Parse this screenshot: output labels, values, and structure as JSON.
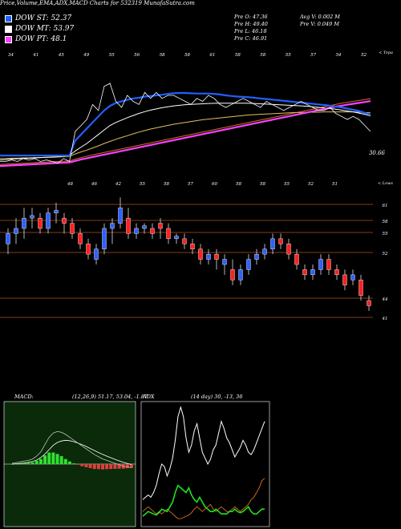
{
  "header": {
    "title": "Price,Volume,EMA,ADX,MACD Charts for 532319  MunafaSutra.com"
  },
  "legend": [
    {
      "label": "DOW ST: 52.37",
      "color": "#2060ff"
    },
    {
      "label": "DOW MT: 53.97",
      "color": "#ffffff"
    },
    {
      "label": "DOW PT: 48.1",
      "color": "#ff40ff"
    }
  ],
  "price_info": {
    "open": "Pre  O: 47.36",
    "high": "Pre  H: 49.40",
    "low": "Pre  L: 46.18",
    "close": "Pre  C: 46.91",
    "avg_vol": "Avg V: 0.002  M",
    "pre_vol": "Pre  V: 0.049  M"
  },
  "ema_panel": {
    "axis_caption": "< Topa",
    "last_value_label": "30.66",
    "top_labels": [
      "34",
      "41",
      "45",
      "49",
      "55",
      "56",
      "58",
      "58",
      "61",
      "58",
      "58",
      "55",
      "57",
      "54",
      "52"
    ],
    "series": {
      "price": [
        26,
        26,
        26.5,
        26,
        27,
        26.5,
        27,
        26,
        26.5,
        26,
        25.5,
        27,
        26,
        36,
        38,
        40,
        45,
        43,
        51,
        52,
        46,
        44,
        48,
        46,
        45,
        49,
        47,
        49,
        47,
        48,
        48,
        47,
        46,
        45,
        47,
        46,
        48,
        47,
        45,
        44,
        45,
        46,
        47,
        46,
        45,
        44,
        46,
        45,
        44,
        43,
        44,
        45,
        46,
        45,
        44,
        43,
        43,
        44,
        42,
        41,
        40,
        41,
        40,
        38,
        36
      ],
      "ema_fast": [
        28,
        28,
        28,
        28,
        28,
        28,
        28,
        28,
        28,
        28,
        28,
        28,
        28,
        33,
        35,
        37,
        39,
        41,
        43,
        44.5,
        45.5,
        46,
        46.5,
        47,
        47.2,
        47.6,
        47.8,
        48,
        48.2,
        48.5,
        48.7,
        48.8,
        48.8,
        48.7,
        48.6,
        48.6,
        48.6,
        48.5,
        48.3,
        48,
        47.8,
        47.6,
        47.5,
        47.4,
        47.2,
        47,
        46.8,
        46.6,
        46.4,
        46.2,
        46,
        45.8,
        45.6,
        45.4,
        45.2,
        45,
        44.8,
        44.6,
        44.3,
        44,
        43.6,
        43.2,
        42.8,
        42.2,
        41.5
      ],
      "ema_mid": [
        26.5,
        26.6,
        26.8,
        26.9,
        27,
        27.1,
        27.2,
        27.3,
        27.4,
        27.5,
        27.6,
        27.8,
        28,
        29.5,
        30.8,
        32,
        33.5,
        35,
        36.5,
        38,
        39,
        39.8,
        40.6,
        41.3,
        42,
        42.6,
        43.1,
        43.5,
        43.9,
        44.2,
        44.5,
        44.7,
        44.9,
        45,
        45.1,
        45.2,
        45.3,
        45.35,
        45.4,
        45.4,
        45.4,
        45.4,
        45.4,
        45.35,
        45.3,
        45.2,
        45.1,
        45,
        44.9,
        44.8,
        44.7,
        44.6,
        44.5,
        44.4,
        44.2,
        44,
        43.8,
        43.6,
        43.4,
        43.1,
        42.8,
        42.5,
        42.1,
        41.7,
        41.2
      ],
      "ema_slow": [
        27,
        27,
        27.1,
        27.1,
        27.2,
        27.2,
        27.3,
        27.3,
        27.4,
        27.4,
        27.5,
        27.6,
        27.7,
        28.5,
        29.2,
        29.8,
        30.5,
        31.2,
        32,
        32.7,
        33.4,
        34,
        34.6,
        35.2,
        35.8,
        36.3,
        36.8,
        37.2,
        37.6,
        38,
        38.4,
        38.7,
        39,
        39.3,
        39.6,
        39.9,
        40.1,
        40.3,
        40.5,
        40.7,
        40.9,
        41.1,
        41.3,
        41.5,
        41.6,
        41.7,
        41.8,
        41.9,
        42,
        42.1,
        42.2,
        42.3,
        42.3,
        42.4,
        42.4,
        42.4,
        42.5,
        42.5,
        42.5,
        42.5,
        42.5,
        42.5,
        42.4,
        42.3,
        42.2
      ],
      "ema_long": [
        25,
        25.1,
        25.2,
        25.3,
        25.4,
        25.5,
        25.6,
        25.7,
        25.8,
        25.9,
        26,
        26.1,
        26.2,
        26.8,
        27.3,
        27.8,
        28.2,
        28.6,
        29,
        29.4,
        29.8,
        30.2,
        30.6,
        31,
        31.4,
        31.8,
        32.2,
        32.6,
        33,
        33.4,
        33.8,
        34.2,
        34.6,
        35,
        35.4,
        35.8,
        36.2,
        36.6,
        37,
        37.4,
        37.8,
        38.2,
        38.6,
        39,
        39.4,
        39.8,
        40.2,
        40.6,
        41,
        41.4,
        41.8,
        42.2,
        42.6,
        43,
        43.4,
        43.8,
        44.2,
        44.6,
        45,
        45.4,
        45.7,
        46,
        46.3,
        46.6,
        46.9
      ],
      "dow_pt": [
        24.5,
        24.6,
        24.7,
        24.8,
        24.9,
        25,
        25.1,
        25.2,
        25.3,
        25.4,
        25.5,
        25.6,
        25.7,
        26.2,
        26.7,
        27.1,
        27.5,
        27.9,
        28.3,
        28.7,
        29.1,
        29.5,
        29.9,
        30.3,
        30.7,
        31.1,
        31.5,
        31.9,
        32.3,
        32.7,
        33.1,
        33.5,
        33.9,
        34.3,
        34.7,
        35.1,
        35.5,
        35.9,
        36.3,
        36.7,
        37.1,
        37.5,
        37.9,
        38.3,
        38.7,
        39.1,
        39.5,
        39.9,
        40.3,
        40.7,
        41.1,
        41.5,
        41.9,
        42.3,
        42.7,
        43.1,
        43.5,
        43.9,
        44.3,
        44.6,
        44.9,
        45.2,
        45.5,
        45.8,
        46.1
      ]
    },
    "colors": {
      "price": "#ffffff",
      "ema_fast": "#2060ff",
      "ema_mid": "#ffffff",
      "ema_slow": "#e0c060",
      "ema_long": "#d07020",
      "dow_pt": "#ff40ff"
    }
  },
  "candle_panel": {
    "axis_caption": "< Lows",
    "top_labels": [
      "48",
      "46",
      "42",
      "55",
      "58",
      "57",
      "60",
      "58",
      "58",
      "55",
      "52",
      "51"
    ],
    "right_labels": [
      "61",
      "58",
      "55",
      "52",
      "44",
      "41"
    ],
    "level_color": "#b05020",
    "candles": [
      {
        "o": 56,
        "c": 58,
        "h": 59,
        "l": 54
      },
      {
        "o": 58,
        "c": 59,
        "h": 61,
        "l": 56
      },
      {
        "o": 59,
        "c": 61,
        "h": 63,
        "l": 57
      },
      {
        "o": 61,
        "c": 61.5,
        "h": 63,
        "l": 59
      },
      {
        "o": 61,
        "c": 59,
        "h": 62,
        "l": 58
      },
      {
        "o": 59,
        "c": 62,
        "h": 63,
        "l": 58
      },
      {
        "o": 62,
        "c": 62.5,
        "h": 64,
        "l": 60
      },
      {
        "o": 61,
        "c": 60,
        "h": 62,
        "l": 58
      },
      {
        "o": 60,
        "c": 58,
        "h": 61,
        "l": 57
      },
      {
        "o": 58,
        "c": 56,
        "h": 59,
        "l": 55
      },
      {
        "o": 56,
        "c": 54,
        "h": 57,
        "l": 53
      },
      {
        "o": 53,
        "c": 55,
        "h": 56,
        "l": 52
      },
      {
        "o": 55,
        "c": 59,
        "h": 60,
        "l": 54
      },
      {
        "o": 59,
        "c": 60,
        "h": 61,
        "l": 56
      },
      {
        "o": 60,
        "c": 63,
        "h": 65,
        "l": 59
      },
      {
        "o": 61,
        "c": 58,
        "h": 63,
        "l": 57
      },
      {
        "o": 58,
        "c": 59,
        "h": 60,
        "l": 57
      },
      {
        "o": 59,
        "c": 59.5,
        "h": 60,
        "l": 58
      },
      {
        "o": 59,
        "c": 58,
        "h": 60,
        "l": 57
      },
      {
        "o": 60,
        "c": 59,
        "h": 61,
        "l": 57
      },
      {
        "o": 59,
        "c": 57,
        "h": 60,
        "l": 56
      },
      {
        "o": 57,
        "c": 57.5,
        "h": 58,
        "l": 56
      },
      {
        "o": 57,
        "c": 56,
        "h": 58,
        "l": 55
      },
      {
        "o": 56,
        "c": 55,
        "h": 57,
        "l": 54
      },
      {
        "o": 55,
        "c": 53,
        "h": 56,
        "l": 52
      },
      {
        "o": 53,
        "c": 54,
        "h": 55,
        "l": 52
      },
      {
        "o": 54,
        "c": 53,
        "h": 55,
        "l": 51
      },
      {
        "o": 52,
        "c": 53,
        "h": 54,
        "l": 50
      },
      {
        "o": 51,
        "c": 49,
        "h": 53,
        "l": 48
      },
      {
        "o": 49,
        "c": 51,
        "h": 52,
        "l": 48
      },
      {
        "o": 51,
        "c": 53,
        "h": 54,
        "l": 50
      },
      {
        "o": 53,
        "c": 54,
        "h": 55,
        "l": 52
      },
      {
        "o": 54,
        "c": 55,
        "h": 56,
        "l": 53
      },
      {
        "o": 55,
        "c": 57,
        "h": 58,
        "l": 54
      },
      {
        "o": 57,
        "c": 56,
        "h": 58,
        "l": 55
      },
      {
        "o": 56,
        "c": 54,
        "h": 57,
        "l": 53
      },
      {
        "o": 54,
        "c": 52,
        "h": 55,
        "l": 51
      },
      {
        "o": 51,
        "c": 50,
        "h": 52,
        "l": 49
      },
      {
        "o": 50,
        "c": 51,
        "h": 52,
        "l": 49
      },
      {
        "o": 51,
        "c": 53,
        "h": 54,
        "l": 50
      },
      {
        "o": 53,
        "c": 51,
        "h": 54,
        "l": 50
      },
      {
        "o": 51,
        "c": 50,
        "h": 52,
        "l": 49
      },
      {
        "o": 50,
        "c": 48,
        "h": 51,
        "l": 47
      },
      {
        "o": 49,
        "c": 50,
        "h": 51,
        "l": 48
      },
      {
        "o": 49,
        "c": 46,
        "h": 50,
        "l": 45
      },
      {
        "o": 45,
        "c": 44,
        "h": 46,
        "l": 43
      }
    ]
  },
  "macd_panel": {
    "label": "MACD:",
    "params": "(12,26,9) 51.17,  53.04,  -1.87",
    "macd": [
      0,
      0.05,
      0.1,
      0.15,
      0.2,
      0.3,
      0.5,
      0.8,
      1.3,
      1.8,
      2.1,
      2.2,
      2.15,
      2.0,
      1.8,
      1.6,
      1.4,
      1.2,
      1.0,
      0.8,
      0.6,
      0.45,
      0.3,
      0.2,
      0.1,
      0,
      -0.1,
      -0.2,
      -0.25,
      -0.3
    ],
    "signal": [
      0,
      0.02,
      0.05,
      0.08,
      0.12,
      0.18,
      0.28,
      0.45,
      0.7,
      1.0,
      1.3,
      1.5,
      1.6,
      1.65,
      1.62,
      1.55,
      1.45,
      1.35,
      1.22,
      1.08,
      0.94,
      0.8,
      0.67,
      0.55,
      0.44,
      0.33,
      0.22,
      0.12,
      0.04,
      -0.03
    ],
    "histogram": [
      0,
      0.03,
      0.05,
      0.07,
      0.08,
      0.12,
      0.22,
      0.35,
      0.6,
      0.8,
      0.8,
      0.7,
      0.55,
      0.35,
      0.18,
      0.05,
      -0.05,
      -0.15,
      -0.22,
      -0.28,
      -0.34,
      -0.35,
      -0.37,
      -0.35,
      -0.34,
      -0.33,
      -0.32,
      -0.32,
      -0.29,
      -0.27
    ]
  },
  "adx_panel": {
    "label": "ADX",
    "params": "(14  day) 30,  -13,  36",
    "adx": [
      20,
      22,
      24,
      22,
      26,
      32,
      42,
      50,
      48,
      40,
      46,
      55,
      70,
      90,
      98,
      90,
      72,
      60,
      66,
      78,
      84,
      72,
      60,
      55,
      50,
      54,
      62,
      66,
      76,
      86,
      80,
      72,
      68,
      62,
      56,
      60,
      64,
      70,
      66,
      60,
      58,
      62,
      68,
      74,
      80,
      86
    ],
    "plus_di": [
      6,
      8,
      10,
      9,
      8,
      7,
      9,
      12,
      11,
      10,
      14,
      18,
      26,
      32,
      30,
      28,
      26,
      30,
      24,
      20,
      18,
      22,
      18,
      14,
      12,
      10,
      10,
      12,
      10,
      8,
      8,
      8,
      10,
      10,
      12,
      10,
      9,
      10,
      12,
      14,
      10,
      8,
      8,
      10,
      12,
      12
    ],
    "minus_di": [
      10,
      12,
      14,
      12,
      10,
      8,
      10,
      8,
      10,
      12,
      10,
      8,
      6,
      4,
      4,
      5,
      6,
      7,
      9,
      12,
      14,
      12,
      10,
      12,
      14,
      16,
      12,
      10,
      12,
      14,
      12,
      10,
      10,
      12,
      14,
      12,
      10,
      12,
      14,
      16,
      20,
      22,
      26,
      30,
      36,
      38
    ],
    "colors": {
      "adx": "#ffffff",
      "plus_di": "#20e020",
      "minus_di": "#e07020"
    }
  }
}
